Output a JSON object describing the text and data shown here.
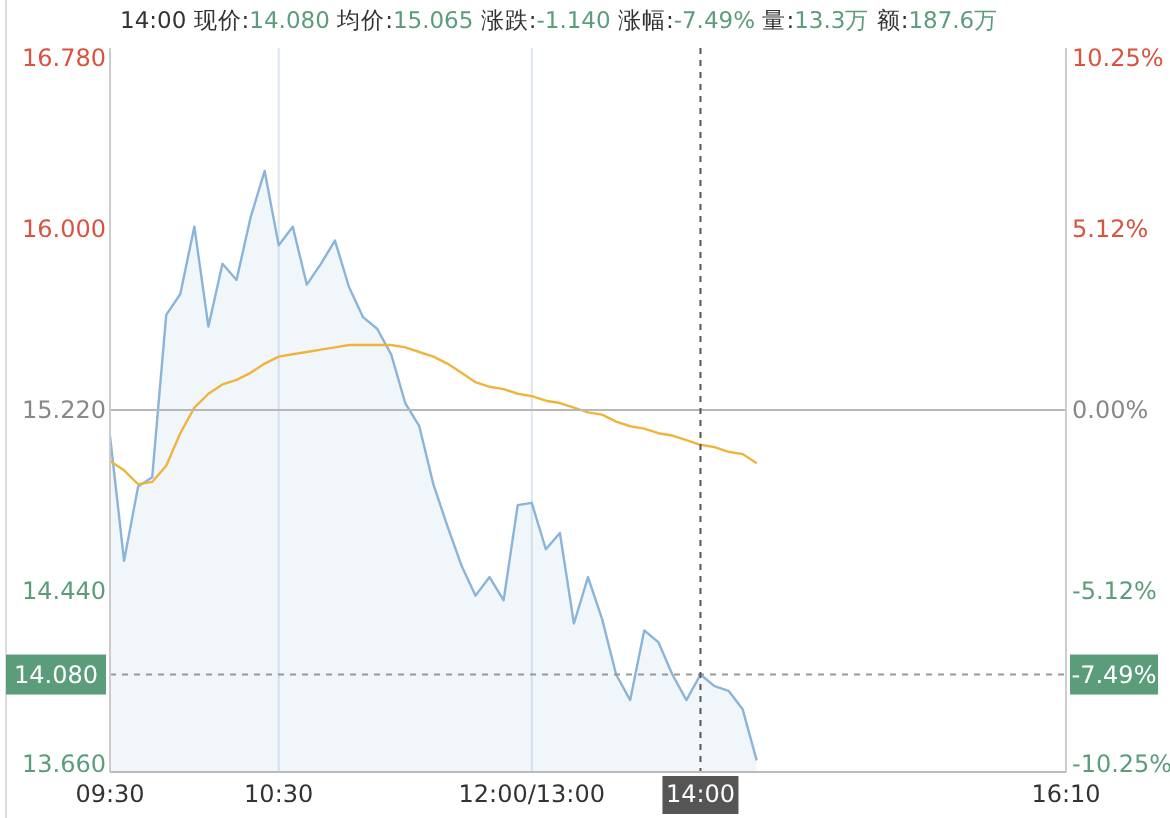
{
  "chart_data": {
    "type": "line",
    "title": "14:00 现价:14.080 均价:15.065 涨跌:-1.140 涨幅:-7.49% 量:13.3万 额:187.6万",
    "categories": [
      "09:30",
      null,
      null,
      null,
      null,
      null,
      null,
      null,
      null,
      null,
      null,
      null,
      "10:30",
      null,
      null,
      null,
      null,
      null,
      null,
      null,
      null,
      null,
      null,
      null,
      null,
      null,
      null,
      null,
      null,
      null,
      "12:00/13:00",
      null,
      null,
      null,
      null,
      null,
      null,
      null,
      null,
      null,
      null,
      null,
      "14:00",
      null,
      null,
      null,
      null,
      null,
      null,
      null,
      null,
      null,
      null,
      null,
      null,
      null,
      null,
      null,
      null,
      null,
      null,
      null,
      null,
      null,
      null,
      null,
      null,
      null,
      "16:10"
    ],
    "ylim": [
      13.66,
      16.78
    ],
    "yticks": [
      {
        "value": 13.66,
        "label": "13.660"
      },
      {
        "value": 14.44,
        "label": "14.440"
      },
      {
        "value": 15.22,
        "label": "15.220"
      },
      {
        "value": 16,
        "label": "16.000"
      },
      {
        "value": 16.78,
        "label": "16.780"
      }
    ],
    "y2lim": [
      -10.25,
      10.25
    ],
    "y2ticks": [
      {
        "value": -10.25,
        "label": "-10.25%"
      },
      {
        "value": -5.12,
        "label": "-5.12%"
      },
      {
        "value": 0,
        "label": "0.00%"
      },
      {
        "value": 5.12,
        "label": "5.12%"
      },
      {
        "value": 10.25,
        "label": "10.25%"
      }
    ],
    "grid": "x",
    "annotations": [
      {
        "text": "-7.49%",
        "y": 14.08
      }
    ],
    "series": [
      {
        "type": "area",
        "color": "#8ab4da",
        "values": [
          15.11,
          14.57,
          14.89,
          14.93,
          15.63,
          15.72,
          16.01,
          15.58,
          15.85,
          15.78,
          16.05,
          16.25,
          15.93,
          16.01,
          15.76,
          15.85,
          15.95,
          15.75,
          15.62,
          15.57,
          15.46,
          15.25,
          15.15,
          14.9,
          14.72,
          14.55,
          14.42,
          14.5,
          14.4,
          14.81,
          14.82,
          14.62,
          14.69,
          14.3,
          14.5,
          14.32,
          14.08,
          13.97,
          14.27,
          14.22,
          14.08,
          13.97,
          14.08,
          14.03,
          14.01,
          13.93,
          13.71,
          null,
          null,
          null,
          null,
          null,
          null,
          null,
          null,
          null,
          null,
          null,
          null,
          null,
          null,
          null,
          null,
          null,
          null,
          null,
          null,
          null,
          null
        ]
      },
      {
        "type": "line",
        "color": "#f0b43c",
        "values": [
          15.0,
          14.96,
          14.9,
          14.91,
          14.98,
          15.12,
          15.23,
          15.29,
          15.33,
          15.35,
          15.38,
          15.42,
          15.45,
          15.46,
          15.47,
          15.48,
          15.49,
          15.5,
          15.5,
          15.5,
          15.5,
          15.49,
          15.47,
          15.45,
          15.42,
          15.38,
          15.34,
          15.32,
          15.31,
          15.29,
          15.28,
          15.26,
          15.25,
          15.23,
          15.21,
          15.2,
          15.17,
          15.15,
          15.14,
          15.12,
          15.11,
          15.09,
          15.07,
          15.06,
          15.04,
          15.03,
          14.99,
          null,
          null,
          null,
          null,
          null,
          null,
          null,
          null,
          null,
          null,
          null,
          null,
          null,
          null,
          null,
          null,
          null,
          null,
          null,
          null,
          null,
          null
        ]
      }
    ],
    "ref_lines": [
      {
        "axis": "y",
        "value": 15.22,
        "color": "#b8b8b8",
        "line_style": "solid"
      },
      {
        "axis": "y",
        "value": 14.08,
        "label": "14.080",
        "color": "#999999",
        "line_style": "dashed"
      },
      {
        "axis": "x",
        "value": "14:00",
        "color": "#555555",
        "line_style": "dashed"
      }
    ]
  }
}
